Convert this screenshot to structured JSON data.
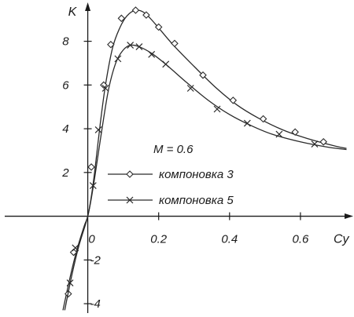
{
  "chart_data": {
    "type": "line",
    "xlabel": "Cy",
    "ylabel": "K",
    "xlim": [
      -0.11,
      0.74
    ],
    "ylim": [
      -4.25,
      9.6
    ],
    "x_ticks": [
      0,
      0.2,
      0.4,
      0.6
    ],
    "x_tick_labels": [
      "0",
      "0.2",
      "0.4",
      "0.6"
    ],
    "y_ticks": [
      -4,
      -2,
      2,
      4,
      6,
      8
    ],
    "y_tick_labels": [
      "-4",
      "-2",
      "2",
      "4",
      "6",
      "8"
    ],
    "grid": false,
    "legend_position": "center",
    "annotation": "M = 0.6",
    "series": [
      {
        "name": "компоновка 3",
        "marker": "diamond",
        "curve": [
          [
            -0.07,
            -4.3
          ],
          [
            -0.05,
            -2.8
          ],
          [
            -0.03,
            -1.5
          ],
          [
            -0.01,
            -0.45
          ],
          [
            0.0,
            0.0
          ],
          [
            0.01,
            0.9
          ],
          [
            0.02,
            2.1
          ],
          [
            0.035,
            4.2
          ],
          [
            0.05,
            6.0
          ],
          [
            0.07,
            7.7
          ],
          [
            0.09,
            8.6
          ],
          [
            0.11,
            9.15
          ],
          [
            0.135,
            9.42
          ],
          [
            0.16,
            9.3
          ],
          [
            0.19,
            8.8
          ],
          [
            0.24,
            7.85
          ],
          [
            0.3,
            6.85
          ],
          [
            0.36,
            5.9
          ],
          [
            0.42,
            5.1
          ],
          [
            0.48,
            4.5
          ],
          [
            0.55,
            3.95
          ],
          [
            0.62,
            3.55
          ],
          [
            0.7,
            3.2
          ],
          [
            0.73,
            3.1
          ]
        ],
        "markers": [
          [
            -0.055,
            -3.55
          ],
          [
            -0.04,
            -1.65
          ],
          [
            0.01,
            2.25
          ],
          [
            0.045,
            6.0
          ],
          [
            0.065,
            7.85
          ],
          [
            0.095,
            9.05
          ],
          [
            0.135,
            9.42
          ],
          [
            0.165,
            9.2
          ],
          [
            0.2,
            8.65
          ],
          [
            0.245,
            7.9
          ],
          [
            0.325,
            6.45
          ],
          [
            0.41,
            5.3
          ],
          [
            0.495,
            4.45
          ],
          [
            0.585,
            3.85
          ],
          [
            0.665,
            3.4
          ]
        ]
      },
      {
        "name": "компоновка 5",
        "marker": "x",
        "curve": [
          [
            -0.065,
            -4.3
          ],
          [
            -0.045,
            -2.7
          ],
          [
            -0.025,
            -1.35
          ],
          [
            0.0,
            0.0
          ],
          [
            0.015,
            1.3
          ],
          [
            0.03,
            2.9
          ],
          [
            0.045,
            4.5
          ],
          [
            0.06,
            5.9
          ],
          [
            0.08,
            7.05
          ],
          [
            0.1,
            7.6
          ],
          [
            0.12,
            7.82
          ],
          [
            0.145,
            7.75
          ],
          [
            0.18,
            7.45
          ],
          [
            0.22,
            6.95
          ],
          [
            0.28,
            6.1
          ],
          [
            0.34,
            5.3
          ],
          [
            0.4,
            4.65
          ],
          [
            0.46,
            4.15
          ],
          [
            0.52,
            3.75
          ],
          [
            0.6,
            3.4
          ],
          [
            0.68,
            3.15
          ],
          [
            0.73,
            3.05
          ]
        ],
        "markers": [
          [
            -0.05,
            -3.05
          ],
          [
            -0.035,
            -1.45
          ],
          [
            0.015,
            1.4
          ],
          [
            0.03,
            3.95
          ],
          [
            0.05,
            5.85
          ],
          [
            0.085,
            7.2
          ],
          [
            0.12,
            7.82
          ],
          [
            0.145,
            7.75
          ],
          [
            0.18,
            7.4
          ],
          [
            0.22,
            6.95
          ],
          [
            0.29,
            5.85
          ],
          [
            0.365,
            4.9
          ],
          [
            0.45,
            4.25
          ],
          [
            0.54,
            3.75
          ],
          [
            0.64,
            3.3
          ]
        ]
      }
    ]
  }
}
